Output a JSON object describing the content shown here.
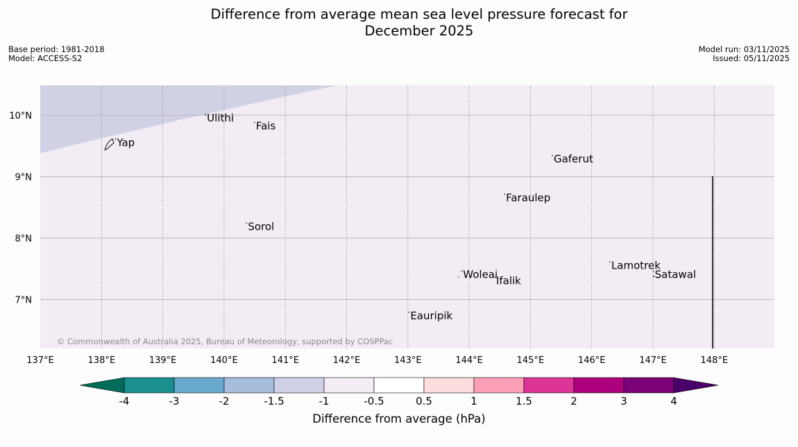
{
  "title": {
    "line1": "Difference from average mean sea level pressure forecast for",
    "line2": "December 2025"
  },
  "meta": {
    "base_period": "Base period: 1981-2018",
    "model": "Model: ACCESS-S2",
    "model_run": "Model run: 03/11/2025",
    "issued": "Issued: 05/11/2025"
  },
  "map": {
    "lat_labels": [
      "10°N",
      "9°N",
      "8°N",
      "7°N"
    ],
    "lon_labels": [
      "137°E",
      "138°E",
      "139°E",
      "140°E",
      "141°E",
      "142°E",
      "143°E",
      "144°E",
      "145°E",
      "146°E",
      "147°E",
      "148°E"
    ],
    "places": [
      {
        "name": "Yap",
        "lon": 138.25,
        "lat": 9.5
      },
      {
        "name": "Ulithi",
        "lon": 139.72,
        "lat": 9.9
      },
      {
        "name": "Fais",
        "lon": 140.52,
        "lat": 9.77
      },
      {
        "name": "Gaferut",
        "lon": 145.38,
        "lat": 9.23
      },
      {
        "name": "Faraulep",
        "lon": 144.6,
        "lat": 8.6
      },
      {
        "name": "Sorol",
        "lon": 140.39,
        "lat": 8.13
      },
      {
        "name": "Woleai",
        "lon": 143.9,
        "lat": 7.35
      },
      {
        "name": "Ifalik",
        "lon": 144.44,
        "lat": 7.25
      },
      {
        "name": "Lamotrek",
        "lon": 146.32,
        "lat": 7.5
      },
      {
        "name": "Satawal",
        "lon": 147.03,
        "lat": 7.35
      },
      {
        "name": "Eauripik",
        "lon": 143.04,
        "lat": 6.68
      }
    ],
    "copyright": "© Commonwealth of Australia 2025, Bureau of Meteorology, supported by COSPPac",
    "background_color": "#f3ecf5",
    "shaded_color": "#d0d1e4"
  },
  "colorbar": {
    "ticks": [
      "-4",
      "-3",
      "-2",
      "-1.5",
      "-1",
      "-0.5",
      "0.5",
      "1",
      "1.5",
      "2",
      "3",
      "4"
    ],
    "colors": [
      "#1a8f8f",
      "#67a9cf",
      "#a6bddb",
      "#d0d1e6",
      "#f3ecf5",
      "#ffffff",
      "#fdddde",
      "#fa9fb5",
      "#dd3497",
      "#ae017e",
      "#7a0177"
    ],
    "under_color": "#016c59",
    "over_color": "#49006a",
    "label": "Difference from average (hPa)"
  }
}
